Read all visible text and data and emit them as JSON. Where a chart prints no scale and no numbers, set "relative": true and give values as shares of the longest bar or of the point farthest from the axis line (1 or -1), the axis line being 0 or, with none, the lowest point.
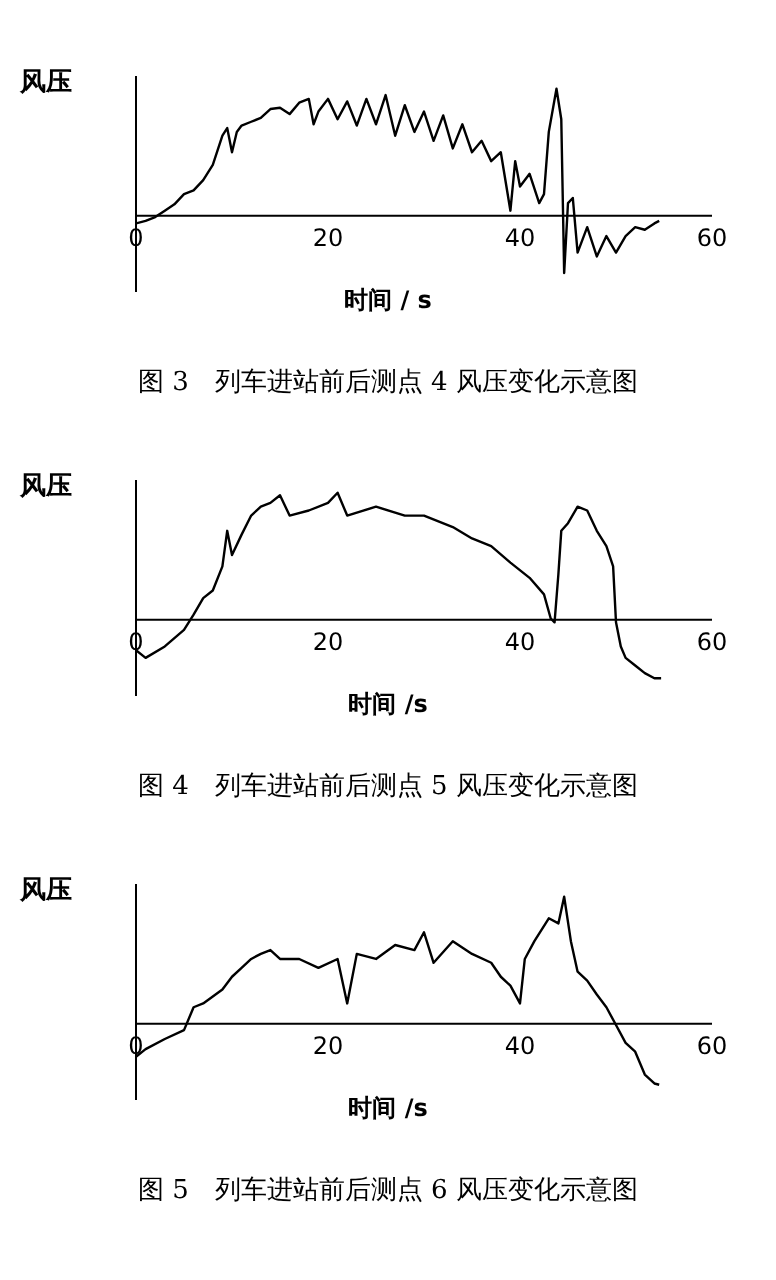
{
  "chart_data": [
    {
      "type": "line",
      "title": "图 3　列车进站前后测点 4 风压变化示意图",
      "xlabel": "时间 / s",
      "ylabel": "风压",
      "relative": true,
      "xlim": [
        0,
        60
      ],
      "xticks": [
        0,
        20,
        40,
        60
      ],
      "series": [
        {
          "color": "#000000",
          "x": [
            0,
            1,
            2,
            3,
            4,
            5,
            6,
            7,
            8,
            9,
            9.5,
            10,
            10.5,
            11,
            12,
            13,
            14,
            15,
            16,
            17,
            18,
            18.5,
            19,
            20,
            21,
            22,
            23,
            24,
            25,
            26,
            27,
            28,
            29,
            30,
            31,
            32,
            33,
            34,
            35,
            36,
            37,
            38,
            39,
            39.5,
            40,
            41,
            42,
            42.5,
            43,
            43.8,
            44.3,
            44.6,
            45,
            45.5,
            46,
            47,
            48,
            49,
            50,
            51,
            52,
            53,
            54,
            54.5
          ],
          "values": [
            -0.06,
            -0.04,
            -0.01,
            0.04,
            0.09,
            0.17,
            0.2,
            0.28,
            0.4,
            0.63,
            0.69,
            0.5,
            0.66,
            0.71,
            0.74,
            0.77,
            0.84,
            0.85,
            0.8,
            0.89,
            0.92,
            0.72,
            0.82,
            0.92,
            0.76,
            0.9,
            0.71,
            0.92,
            0.72,
            0.95,
            0.63,
            0.87,
            0.66,
            0.82,
            0.59,
            0.79,
            0.53,
            0.72,
            0.5,
            0.59,
            0.43,
            0.5,
            0.04,
            0.43,
            0.23,
            0.33,
            0.1,
            0.17,
            0.66,
            1,
            0.76,
            -0.45,
            0.1,
            0.14,
            -0.29,
            -0.09,
            -0.32,
            -0.16,
            -0.29,
            -0.16,
            -0.09,
            -0.11,
            -0.06,
            -0.04
          ]
        }
      ]
    },
    {
      "type": "line",
      "title": "图 4　列车进站前后测点 5 风压变化示意图",
      "xlabel": "时间 /s",
      "ylabel": "风压",
      "relative": true,
      "xlim": [
        0,
        60
      ],
      "xticks": [
        0,
        20,
        40,
        60
      ],
      "series": [
        {
          "color": "#000000",
          "x": [
            0,
            1,
            3,
            5,
            6,
            7,
            8,
            9,
            9.5,
            10,
            11,
            12,
            13,
            14,
            15,
            16,
            18,
            20,
            21,
            22,
            25,
            28,
            30,
            33,
            35,
            37,
            39,
            41,
            42.5,
            43.2,
            43.6,
            44,
            44.3,
            45,
            46,
            47,
            48,
            49,
            49.7,
            50,
            50.5,
            51,
            52,
            53,
            54,
            54.7
          ],
          "values": [
            -0.24,
            -0.3,
            -0.21,
            -0.08,
            0.04,
            0.17,
            0.23,
            0.42,
            0.7,
            0.51,
            0.67,
            0.82,
            0.89,
            0.92,
            0.98,
            0.82,
            0.86,
            0.92,
            1,
            0.82,
            0.89,
            0.82,
            0.82,
            0.73,
            0.64,
            0.58,
            0.45,
            0.33,
            0.2,
            0.01,
            -0.02,
            0.36,
            0.7,
            0.76,
            0.89,
            0.86,
            0.7,
            0.58,
            0.42,
            -0.02,
            -0.21,
            -0.3,
            -0.36,
            -0.42,
            -0.46,
            -0.46
          ]
        }
      ]
    },
    {
      "type": "line",
      "title": "图 5　列车进站前后测点 6 风压变化示意图",
      "xlabel": "时间 /s",
      "ylabel": "风压",
      "relative": true,
      "xlim": [
        0,
        60
      ],
      "xticks": [
        0,
        20,
        40,
        60
      ],
      "series": [
        {
          "color": "#000000",
          "x": [
            0,
            1,
            3,
            5,
            6,
            7,
            9,
            10,
            11,
            12,
            13,
            14,
            15,
            17,
            19,
            21,
            22,
            23,
            25,
            27,
            29,
            30,
            31,
            33,
            35,
            37,
            38,
            39,
            40,
            40.5,
            41.5,
            43,
            44,
            44.6,
            45.3,
            46,
            47,
            48,
            49,
            50,
            51,
            52,
            53,
            54,
            54.5
          ],
          "values": [
            -0.26,
            -0.2,
            -0.12,
            -0.05,
            0.13,
            0.16,
            0.27,
            0.37,
            0.44,
            0.51,
            0.55,
            0.58,
            0.51,
            0.51,
            0.44,
            0.51,
            0.16,
            0.55,
            0.51,
            0.62,
            0.58,
            0.72,
            0.48,
            0.65,
            0.55,
            0.48,
            0.37,
            0.3,
            0.16,
            0.51,
            0.65,
            0.83,
            0.79,
            1,
            0.65,
            0.41,
            0.34,
            0.23,
            0.13,
            -0.01,
            -0.15,
            -0.22,
            -0.4,
            -0.47,
            -0.48
          ]
        }
      ]
    }
  ]
}
